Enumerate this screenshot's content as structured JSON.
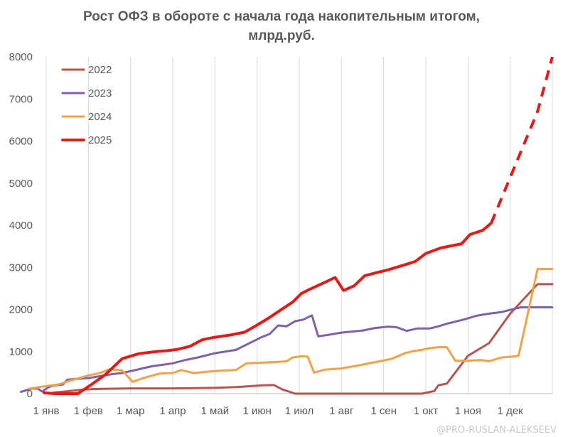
{
  "chart_data": {
    "type": "line",
    "title_line1": "Рост ОФЗ в обороте с начала года накопительным итогом,",
    "title_line2": "млрд.руб.",
    "xlabel": "",
    "ylabel": "",
    "ylim": [
      0,
      8000
    ],
    "y_ticks": [
      "0",
      "1000",
      "2000",
      "3000",
      "4000",
      "5000",
      "6000",
      "7000",
      "8000"
    ],
    "x_ticks": [
      "1 янв",
      "1 фев",
      "1 мар",
      "1 апр",
      "1 май",
      "1 июн",
      "1 июл",
      "1 авг",
      "1 сен",
      "1 окт",
      "1 ноя",
      "1 дек"
    ],
    "grid": "vertical",
    "legend_position": "top-left",
    "series": [
      {
        "name": "2022",
        "color": "#b85450",
        "points": [
          [
            1.05,
            0
          ],
          [
            1.2,
            30
          ],
          [
            1.55,
            60
          ],
          [
            1.9,
            100
          ],
          [
            2.3,
            115
          ],
          [
            3,
            125
          ],
          [
            4,
            125
          ],
          [
            4.5,
            130
          ],
          [
            5,
            140
          ],
          [
            5.5,
            155
          ],
          [
            5.8,
            175
          ],
          [
            6.1,
            195
          ],
          [
            6.4,
            205
          ],
          [
            6.6,
            100
          ],
          [
            6.9,
            0
          ],
          [
            7.5,
            0
          ],
          [
            8.5,
            0
          ],
          [
            9.5,
            0
          ],
          [
            9.9,
            0
          ],
          [
            10.2,
            60
          ],
          [
            10.3,
            200
          ],
          [
            10.5,
            240
          ],
          [
            11,
            900
          ],
          [
            11.5,
            1200
          ],
          [
            12,
            1900
          ],
          [
            12.65,
            2600
          ],
          [
            13.05,
            2600
          ]
        ]
      },
      {
        "name": "2023",
        "color": "#8061a9",
        "points": [
          [
            0.4,
            40
          ],
          [
            0.65,
            120
          ],
          [
            0.8,
            120
          ],
          [
            0.9,
            50
          ],
          [
            1.05,
            150
          ],
          [
            1.15,
            190
          ],
          [
            1.25,
            200
          ],
          [
            1.4,
            220
          ],
          [
            1.5,
            330
          ],
          [
            1.7,
            350
          ],
          [
            2,
            370
          ],
          [
            2.3,
            420
          ],
          [
            2.6,
            470
          ],
          [
            2.8,
            490
          ],
          [
            3.2,
            580
          ],
          [
            3.5,
            650
          ],
          [
            4,
            720
          ],
          [
            4.3,
            800
          ],
          [
            4.6,
            860
          ],
          [
            5,
            960
          ],
          [
            5.5,
            1040
          ],
          [
            6.1,
            1340
          ],
          [
            6.3,
            1420
          ],
          [
            6.5,
            1620
          ],
          [
            6.7,
            1600
          ],
          [
            6.9,
            1720
          ],
          [
            7.1,
            1760
          ],
          [
            7.3,
            1860
          ],
          [
            7.45,
            1360
          ],
          [
            7.7,
            1400
          ],
          [
            8,
            1450
          ],
          [
            8.5,
            1500
          ],
          [
            8.8,
            1560
          ],
          [
            9.1,
            1590
          ],
          [
            9.3,
            1580
          ],
          [
            9.55,
            1490
          ],
          [
            9.8,
            1550
          ],
          [
            10.1,
            1550
          ],
          [
            10.3,
            1600
          ],
          [
            10.5,
            1660
          ],
          [
            10.9,
            1760
          ],
          [
            11.2,
            1850
          ],
          [
            11.5,
            1900
          ],
          [
            11.8,
            1940
          ],
          [
            12,
            1990
          ],
          [
            12.25,
            2050
          ],
          [
            12.6,
            2050
          ],
          [
            13.05,
            2050
          ]
        ]
      },
      {
        "name": "2024",
        "color": "#f2a144",
        "points": [
          [
            0.6,
            120
          ],
          [
            1,
            180
          ],
          [
            1.3,
            220
          ],
          [
            1.6,
            320
          ],
          [
            2,
            430
          ],
          [
            2.3,
            500
          ],
          [
            2.5,
            580
          ],
          [
            2.8,
            550
          ],
          [
            3.05,
            280
          ],
          [
            3.3,
            370
          ],
          [
            3.7,
            480
          ],
          [
            4,
            490
          ],
          [
            4.2,
            560
          ],
          [
            4.5,
            490
          ],
          [
            4.8,
            520
          ],
          [
            5.2,
            550
          ],
          [
            5.5,
            560
          ],
          [
            5.75,
            720
          ],
          [
            6,
            730
          ],
          [
            6.4,
            750
          ],
          [
            6.7,
            770
          ],
          [
            6.85,
            860
          ],
          [
            7.05,
            890
          ],
          [
            7.2,
            880
          ],
          [
            7.35,
            500
          ],
          [
            7.6,
            570
          ],
          [
            8,
            600
          ],
          [
            8.4,
            670
          ],
          [
            8.8,
            750
          ],
          [
            9.2,
            830
          ],
          [
            9.5,
            960
          ],
          [
            9.7,
            1010
          ],
          [
            9.9,
            1040
          ],
          [
            10.1,
            1080
          ],
          [
            10.35,
            1110
          ],
          [
            10.5,
            1100
          ],
          [
            10.7,
            780
          ],
          [
            11,
            780
          ],
          [
            11.3,
            800
          ],
          [
            11.5,
            770
          ],
          [
            11.8,
            860
          ],
          [
            12.05,
            880
          ],
          [
            12.2,
            900
          ],
          [
            12.65,
            2960
          ],
          [
            13.05,
            2960
          ]
        ]
      },
      {
        "name": "2025",
        "color": "#e31b17",
        "points": [
          [
            0.95,
            20
          ],
          [
            1.2,
            0
          ],
          [
            1.55,
            0
          ],
          [
            1.75,
            0
          ],
          [
            2.05,
            200
          ],
          [
            2.4,
            450
          ],
          [
            2.8,
            830
          ],
          [
            3.2,
            950
          ],
          [
            3.6,
            1000
          ],
          [
            3.85,
            1020
          ],
          [
            4.1,
            1050
          ],
          [
            4.4,
            1120
          ],
          [
            4.7,
            1280
          ],
          [
            5,
            1340
          ],
          [
            5.4,
            1400
          ],
          [
            5.7,
            1460
          ],
          [
            5.95,
            1600
          ],
          [
            6.25,
            1780
          ],
          [
            6.55,
            1980
          ],
          [
            6.85,
            2180
          ],
          [
            7.05,
            2380
          ],
          [
            7.25,
            2480
          ],
          [
            7.6,
            2640
          ],
          [
            7.85,
            2760
          ],
          [
            8.05,
            2450
          ],
          [
            8.3,
            2560
          ],
          [
            8.55,
            2800
          ],
          [
            8.85,
            2880
          ],
          [
            9.1,
            2940
          ],
          [
            9.5,
            3060
          ],
          [
            9.75,
            3140
          ],
          [
            10,
            3330
          ],
          [
            10.35,
            3460
          ],
          [
            10.6,
            3510
          ],
          [
            10.85,
            3560
          ],
          [
            11.05,
            3780
          ],
          [
            11.35,
            3880
          ],
          [
            11.55,
            4050
          ]
        ],
        "forecast": [
          [
            11.55,
            4050
          ],
          [
            12.65,
            6700
          ],
          [
            13.05,
            8000
          ]
        ]
      }
    ]
  },
  "watermark_text": "@PRO-RUSLAN-ALEKSEEV"
}
